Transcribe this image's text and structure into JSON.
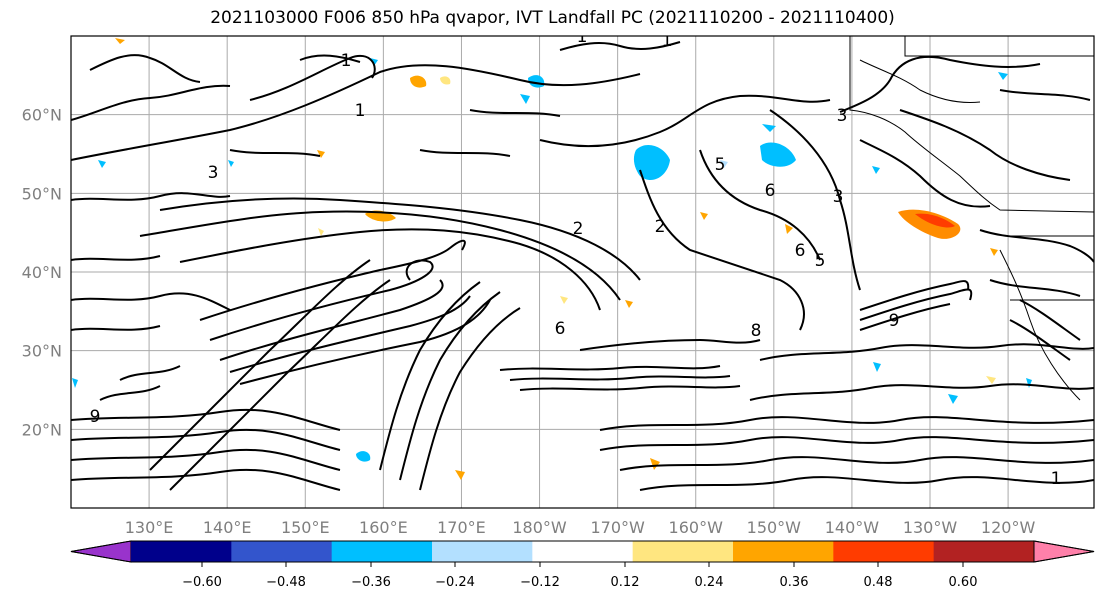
{
  "title": "2021103000 F006 850 hPa qvapor, IVT Landfall PC (2021110200 - 2021110400)",
  "map": {
    "lon_labels": [
      "130°E",
      "140°E",
      "150°E",
      "160°E",
      "170°E",
      "180°W",
      "170°W",
      "160°W",
      "150°W",
      "140°W",
      "130°W",
      "120°W"
    ],
    "lat_labels": [
      "60°N",
      "50°N",
      "40°N",
      "30°N",
      "20°N"
    ],
    "lat_values": [
      60,
      50,
      40,
      30,
      20
    ],
    "lat_range": [
      10,
      70
    ],
    "lon_range": [
      120,
      251
    ],
    "lon_values": [
      130,
      140,
      150,
      160,
      170,
      180,
      190,
      200,
      210,
      220,
      230,
      240
    ],
    "contour_labels": [
      "1",
      "1",
      "1",
      "1",
      "3",
      "3",
      "2",
      "2",
      "5",
      "6",
      "5",
      "6",
      "9",
      "9",
      "8",
      "6",
      "3",
      "1"
    ]
  },
  "colorbar": {
    "tick_labels": [
      "−0.60",
      "−0.48",
      "−0.36",
      "−0.24",
      "−0.12",
      "0.12",
      "0.24",
      "0.36",
      "0.48",
      "0.60"
    ],
    "colors": [
      "#9933cc",
      "#00008b",
      "#3355cc",
      "#00bfff",
      "#b3e0ff",
      "#ffffff",
      "#ffe680",
      "#ffa500",
      "#ff3c00",
      "#b22222",
      "#ff80aa"
    ]
  }
}
